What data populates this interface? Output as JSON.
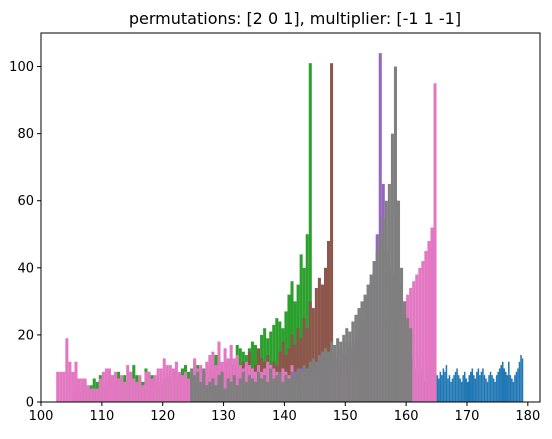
{
  "chart_data": {
    "type": "bar",
    "title": "permutations: [2 0 1], multiplier: [-1  1 -1]",
    "xlabel": "",
    "ylabel": "",
    "xlim": [
      100,
      182
    ],
    "ylim": [
      0,
      110
    ],
    "xticks": [
      100,
      110,
      120,
      130,
      140,
      150,
      160,
      170,
      180
    ],
    "yticks": [
      0,
      20,
      40,
      60,
      80,
      100
    ],
    "grid": false,
    "series": [
      {
        "color": "#1f77b4",
        "bin_start": 156.0,
        "bin_width": 0.25,
        "values": [
          12,
          14,
          18,
          22,
          26,
          30,
          34,
          38,
          45,
          55,
          60,
          40,
          35,
          30,
          25,
          22,
          20,
          18,
          15,
          14,
          12,
          10,
          9,
          8,
          14,
          10,
          7,
          6,
          8,
          9,
          12,
          10,
          9,
          8,
          7,
          6,
          8,
          7,
          9,
          8,
          10,
          9,
          11,
          7,
          8,
          6,
          7,
          8,
          9,
          10,
          8,
          7,
          6,
          8,
          9,
          7,
          6,
          8,
          9,
          10,
          8,
          7,
          9,
          10,
          8,
          9,
          10,
          8,
          7,
          6,
          8,
          9,
          8,
          7,
          6,
          8,
          9,
          10,
          11,
          12,
          10,
          9,
          8,
          12,
          8,
          7,
          6,
          8,
          9,
          10,
          12,
          14,
          13
        ]
      },
      {
        "color": "#2ca02c",
        "bin_start": 105.0,
        "bin_width": 0.5,
        "values": [
          3,
          4,
          5,
          3,
          6,
          4,
          5,
          7,
          6,
          8,
          5,
          6,
          7,
          8,
          6,
          9,
          7,
          8,
          6,
          9,
          11,
          8,
          7,
          6,
          10,
          9,
          8,
          7,
          6,
          5,
          7,
          8,
          6,
          9,
          7,
          8,
          10,
          11,
          9,
          8,
          12,
          11,
          10,
          9,
          8,
          11,
          13,
          14,
          12,
          10,
          9,
          12,
          13,
          11,
          17,
          16,
          15,
          14,
          16,
          18,
          17,
          15,
          20,
          22,
          19,
          21,
          23,
          25,
          24,
          22,
          27,
          32,
          36,
          30,
          35,
          44,
          40,
          50,
          101
        ]
      },
      {
        "color": "#8c564b",
        "bin_start": 124.0,
        "bin_width": 0.5,
        "values": [
          7,
          5,
          6,
          4,
          8,
          7,
          6,
          5,
          9,
          8,
          10,
          6,
          7,
          5,
          9,
          11,
          8,
          7,
          12,
          10,
          15,
          9,
          11,
          16,
          13,
          12,
          14,
          10,
          12,
          11,
          15,
          18,
          14,
          16,
          20,
          17,
          22,
          19,
          25,
          22,
          30,
          28,
          34,
          37,
          35,
          40,
          48,
          101
        ]
      },
      {
        "color": "#9467bd",
        "bin_start": 140.0,
        "bin_width": 0.5,
        "values": [
          8,
          7,
          6,
          9,
          8,
          10,
          9,
          7,
          11,
          10,
          12,
          11,
          13,
          12,
          14,
          12,
          15,
          13,
          16,
          14,
          18,
          16,
          17,
          19,
          22,
          20,
          25,
          30,
          36,
          42,
          50,
          104,
          65,
          45,
          40,
          35,
          32,
          30,
          28,
          26
        ]
      },
      {
        "color": "#e377c2",
        "bin_start": 102.5,
        "bin_width": 0.5,
        "values": [
          9,
          9,
          9,
          19,
          12,
          9,
          12,
          7,
          7,
          7,
          5,
          4,
          4,
          4,
          7,
          9,
          10,
          10,
          8,
          9,
          7,
          8,
          6,
          11,
          9,
          7,
          6,
          8,
          5,
          9,
          9,
          7,
          8,
          10,
          10,
          13,
          11,
          11,
          10,
          12,
          9,
          8,
          9,
          7,
          9,
          13,
          10,
          11,
          9,
          12,
          14,
          15,
          11,
          18,
          12,
          16,
          13,
          17,
          13,
          14,
          11,
          10,
          12,
          11,
          10,
          9,
          11,
          9,
          10,
          12,
          11,
          10,
          9,
          8,
          10,
          9,
          8,
          11,
          7,
          6,
          4,
          9,
          7,
          8,
          6,
          9,
          8,
          9,
          10,
          8,
          11,
          9,
          10,
          12,
          10,
          9,
          11,
          10,
          12,
          14,
          15,
          16,
          17,
          18,
          20,
          19,
          22,
          21,
          24,
          23,
          25,
          27,
          26,
          28,
          30,
          32,
          34,
          36,
          38,
          40,
          42,
          45,
          48,
          52,
          95
        ]
      },
      {
        "color": "#7f7f7f",
        "bin_start": 124.5,
        "bin_width": 0.5,
        "values": [
          10,
          8,
          9,
          6,
          10,
          5,
          6,
          7,
          5,
          8,
          9,
          4,
          7,
          6,
          8,
          5,
          7,
          9,
          6,
          8,
          7,
          6,
          9,
          7,
          8,
          6,
          10,
          7,
          8,
          9,
          6,
          8,
          7,
          9,
          8,
          10,
          9,
          11,
          10,
          12,
          13,
          12,
          14,
          15,
          16,
          15,
          18,
          17,
          19,
          18,
          20,
          22,
          21,
          24,
          26,
          28,
          30,
          32,
          35,
          38,
          42,
          45,
          50,
          55,
          60,
          65,
          80,
          100,
          60,
          40,
          30,
          25,
          22
        ]
      }
    ]
  }
}
